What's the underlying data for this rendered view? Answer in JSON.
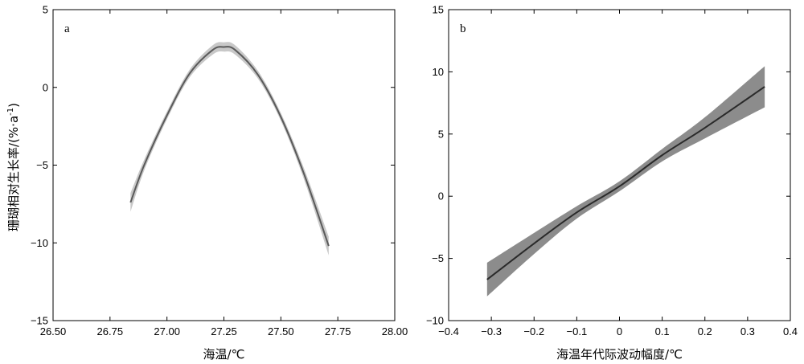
{
  "shared": {
    "ylabel_main": "珊瑚相对生长率/(%·a",
    "ylabel_sup": "-1",
    "ylabel_close": ")"
  },
  "chart_data": [
    {
      "type": "line",
      "panel_label": "a",
      "xlabel": "海温/℃",
      "xlim": [
        26.5,
        28.0
      ],
      "ylim": [
        -15,
        5
      ],
      "x_ticks": [
        26.5,
        26.75,
        27.0,
        27.25,
        27.5,
        27.75,
        28.0
      ],
      "x_tick_labels": [
        "26.50",
        "26.75",
        "27.00",
        "27.25",
        "27.50",
        "27.75",
        "28.00"
      ],
      "y_ticks": [
        -15,
        -10,
        -5,
        0,
        5
      ],
      "y_tick_labels": [
        "−15",
        "−10",
        "−5",
        "0",
        "5"
      ],
      "series": [
        {
          "x": [
            26.84,
            26.9,
            27.0,
            27.1,
            27.2,
            27.25,
            27.3,
            27.4,
            27.5,
            27.6,
            27.71
          ],
          "y": [
            -7.4,
            -5.0,
            -1.8,
            0.9,
            2.4,
            2.6,
            2.4,
            0.8,
            -1.9,
            -5.5,
            -10.2
          ],
          "ci_half_width": [
            0.6,
            0.35,
            0.25,
            0.25,
            0.3,
            0.3,
            0.3,
            0.25,
            0.25,
            0.35,
            0.6
          ]
        }
      ],
      "colors": {
        "line": "#5a5a5a",
        "band": "#c8c8c8"
      }
    },
    {
      "type": "line",
      "panel_label": "b",
      "xlabel": "海温年代际波动幅度/℃",
      "xlim": [
        -0.4,
        0.4
      ],
      "ylim": [
        -10,
        15
      ],
      "x_ticks": [
        -0.4,
        -0.3,
        -0.2,
        -0.1,
        0,
        0.1,
        0.2,
        0.3,
        0.4
      ],
      "x_tick_labels": [
        "−0.4",
        "−0.3",
        "−0.2",
        "−0.1",
        "0",
        "0.1",
        "0.2",
        "0.3",
        "0.4"
      ],
      "y_ticks": [
        -10,
        -5,
        0,
        5,
        10,
        15
      ],
      "y_tick_labels": [
        "−10",
        "−5",
        "0",
        "5",
        "10",
        "15"
      ],
      "series": [
        {
          "x": [
            -0.31,
            -0.2,
            -0.1,
            0,
            0.1,
            0.2,
            0.34
          ],
          "y": [
            -6.7,
            -3.8,
            -1.3,
            0.8,
            3.3,
            5.5,
            8.8
          ],
          "ci_half_width": [
            1.35,
            0.85,
            0.5,
            0.4,
            0.5,
            0.85,
            1.65
          ]
        }
      ],
      "colors": {
        "line": "#2a2a2a",
        "band": "#8c8c8c"
      }
    }
  ]
}
